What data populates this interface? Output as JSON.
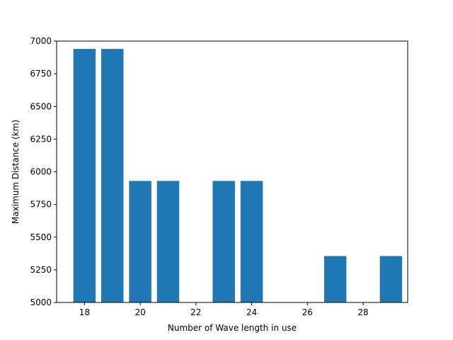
{
  "chart_data": {
    "type": "bar",
    "title": "",
    "xlabel": "Number of Wave length in use",
    "ylabel": "Maximum Distance (km)",
    "x": [
      18,
      19,
      20,
      21,
      23,
      24,
      27,
      29
    ],
    "values": [
      6940,
      6940,
      5930,
      5930,
      5930,
      5930,
      5355,
      5355
    ],
    "xlim": [
      17,
      29.6
    ],
    "ylim": [
      5000,
      7000
    ],
    "xticks": [
      18,
      20,
      22,
      24,
      26,
      28
    ],
    "yticks": [
      5000,
      5250,
      5500,
      5750,
      6000,
      6250,
      6500,
      6750,
      7000
    ],
    "bar_width": 0.8,
    "bar_color": "#1f77b4",
    "grid": false,
    "legend": "none"
  }
}
